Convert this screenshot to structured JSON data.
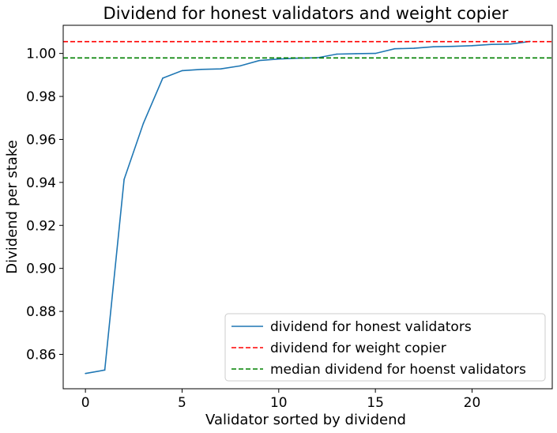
{
  "chart_data": {
    "type": "line",
    "title": "Dividend for honest validators and weight copier",
    "xlabel": "Validator sorted by dividend",
    "ylabel": "Dividend per stake",
    "xlim": [
      -1.15,
      24.15
    ],
    "ylim": [
      0.844,
      1.0131
    ],
    "xticks": [
      0,
      5,
      10,
      15,
      20
    ],
    "yticks": [
      0.86,
      0.88,
      0.9,
      0.92,
      0.94,
      0.96,
      0.98,
      1.0
    ],
    "ytick_labels": [
      "0.86",
      "0.88",
      "0.90",
      "0.92",
      "0.94",
      "0.96",
      "0.98",
      "1.00"
    ],
    "grid": false,
    "legend_position": "lower-right",
    "series": [
      {
        "name": "dividend for honest validators",
        "style": "solid",
        "color": "#1f77b4",
        "x": [
          0,
          1,
          2,
          3,
          4,
          5,
          6,
          7,
          8,
          9,
          10,
          11,
          12,
          13,
          14,
          15,
          16,
          17,
          18,
          19,
          20,
          21,
          22,
          23
        ],
        "y": [
          0.8511,
          0.8527,
          0.9414,
          0.9675,
          0.9885,
          0.992,
          0.9926,
          0.9928,
          0.9942,
          0.9967,
          0.9974,
          0.9978,
          0.998,
          0.9997,
          0.9999,
          1.0,
          1.0022,
          1.0024,
          1.0031,
          1.0033,
          1.0036,
          1.0042,
          1.0044,
          1.0056
        ]
      },
      {
        "name": "dividend for weight copier",
        "style": "dashed",
        "color": "#ff0000",
        "hline": 1.0055
      },
      {
        "name": "median dividend for hoenst validators",
        "style": "dashed",
        "color": "#008000",
        "hline": 0.9979
      }
    ]
  }
}
